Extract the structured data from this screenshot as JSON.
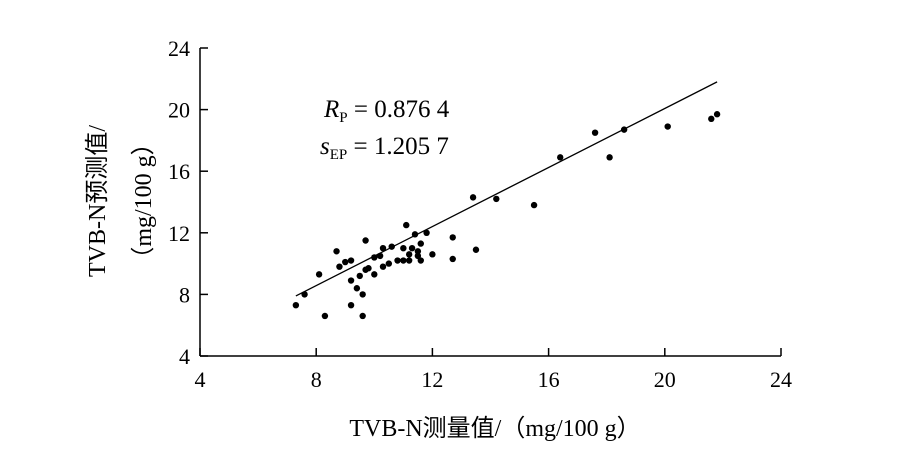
{
  "chart_data": {
    "type": "scatter",
    "title": "",
    "xlabel": "TVB-N测量值/（mg/100 g）",
    "ylabel_line1": "TVB-N预测值/",
    "ylabel_line2": "（mg/100 g）",
    "xlim": [
      4,
      24
    ],
    "ylim": [
      4,
      24
    ],
    "x_ticks": [
      "4",
      "8",
      "12",
      "16",
      "20",
      "24"
    ],
    "y_ticks": [
      "4",
      "8",
      "12",
      "16",
      "20",
      "24"
    ],
    "grid": false,
    "annotations": {
      "rp_symbol": "R",
      "rp_sub": "P",
      "rp_value": " = 0.876 4",
      "sep_symbol": "s",
      "sep_sub": "EP",
      "sep_value": " = 1.205 7"
    },
    "fit_line": {
      "x": [
        7.3,
        21.8
      ],
      "y": [
        7.9,
        21.8
      ]
    },
    "points": [
      {
        "x": 7.3,
        "y": 7.3
      },
      {
        "x": 7.6,
        "y": 8.0
      },
      {
        "x": 8.1,
        "y": 9.3
      },
      {
        "x": 8.3,
        "y": 6.6
      },
      {
        "x": 8.7,
        "y": 10.8
      },
      {
        "x": 8.8,
        "y": 9.8
      },
      {
        "x": 9.0,
        "y": 10.1
      },
      {
        "x": 9.2,
        "y": 10.2
      },
      {
        "x": 9.2,
        "y": 8.9
      },
      {
        "x": 9.2,
        "y": 7.3
      },
      {
        "x": 9.4,
        "y": 8.4
      },
      {
        "x": 9.5,
        "y": 9.2
      },
      {
        "x": 9.6,
        "y": 8.0
      },
      {
        "x": 9.6,
        "y": 6.6
      },
      {
        "x": 9.7,
        "y": 11.5
      },
      {
        "x": 9.7,
        "y": 9.6
      },
      {
        "x": 9.8,
        "y": 9.7
      },
      {
        "x": 10.0,
        "y": 10.4
      },
      {
        "x": 10.0,
        "y": 9.3
      },
      {
        "x": 10.2,
        "y": 10.5
      },
      {
        "x": 10.3,
        "y": 11.0
      },
      {
        "x": 10.3,
        "y": 9.8
      },
      {
        "x": 10.5,
        "y": 10.0
      },
      {
        "x": 10.6,
        "y": 11.1
      },
      {
        "x": 10.8,
        "y": 10.2
      },
      {
        "x": 11.0,
        "y": 11.0
      },
      {
        "x": 11.0,
        "y": 10.2
      },
      {
        "x": 11.1,
        "y": 12.5
      },
      {
        "x": 11.2,
        "y": 10.6
      },
      {
        "x": 11.2,
        "y": 10.2
      },
      {
        "x": 11.3,
        "y": 11.0
      },
      {
        "x": 11.4,
        "y": 11.9
      },
      {
        "x": 11.5,
        "y": 10.8
      },
      {
        "x": 11.5,
        "y": 10.5
      },
      {
        "x": 11.6,
        "y": 10.2
      },
      {
        "x": 11.6,
        "y": 11.3
      },
      {
        "x": 11.8,
        "y": 12.0
      },
      {
        "x": 12.0,
        "y": 10.6
      },
      {
        "x": 12.7,
        "y": 11.7
      },
      {
        "x": 12.7,
        "y": 10.3
      },
      {
        "x": 13.4,
        "y": 14.3
      },
      {
        "x": 13.5,
        "y": 10.9
      },
      {
        "x": 14.2,
        "y": 14.2
      },
      {
        "x": 15.5,
        "y": 13.8
      },
      {
        "x": 16.4,
        "y": 16.9
      },
      {
        "x": 17.6,
        "y": 18.5
      },
      {
        "x": 18.1,
        "y": 16.9
      },
      {
        "x": 18.6,
        "y": 18.7
      },
      {
        "x": 20.1,
        "y": 18.9
      },
      {
        "x": 21.6,
        "y": 19.4
      },
      {
        "x": 21.8,
        "y": 19.7
      }
    ]
  }
}
